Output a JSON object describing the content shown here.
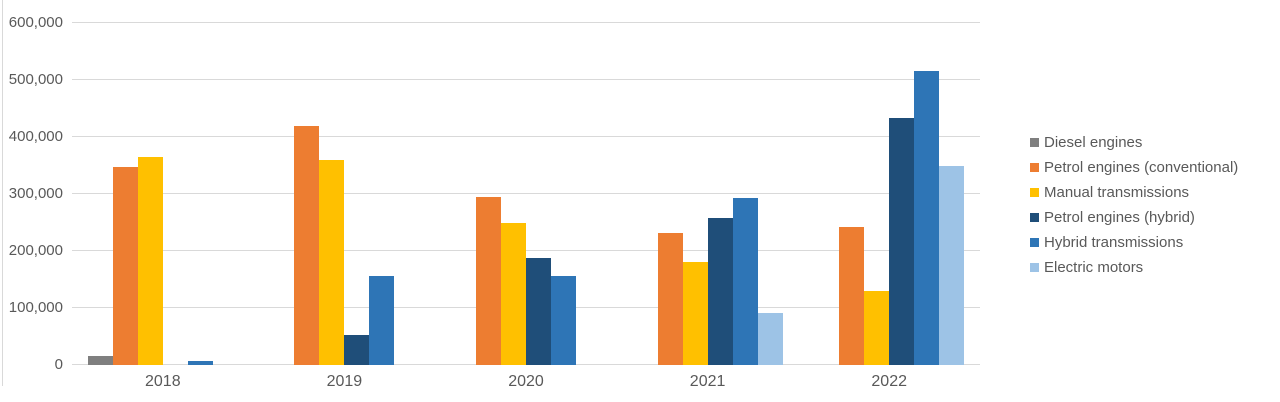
{
  "chart_data": {
    "type": "bar",
    "title": "",
    "categories": [
      "2018",
      "2019",
      "2020",
      "2021",
      "2022"
    ],
    "series": [
      {
        "name": "Diesel engines",
        "color": "#7F7F7F",
        "values": [
          15000,
          0,
          0,
          0,
          0
        ]
      },
      {
        "name": "Petrol engines (conventional)",
        "color": "#ED7D31",
        "values": [
          348000,
          420000,
          294000,
          231000,
          242000
        ]
      },
      {
        "name": "Manual transmissions",
        "color": "#FFC000",
        "values": [
          365000,
          360000,
          250000,
          181000,
          130000
        ]
      },
      {
        "name": "Petrol engines (hybrid)",
        "color": "#1F4E79",
        "values": [
          0,
          53000,
          188000,
          258000,
          433000
        ]
      },
      {
        "name": "Hybrid transmissions",
        "color": "#2E75B6",
        "values": [
          7000,
          157000,
          156000,
          293000,
          516000
        ]
      },
      {
        "name": "Electric motors",
        "color": "#9DC3E6",
        "values": [
          0,
          0,
          0,
          91000,
          350000
        ]
      }
    ],
    "ylim": [
      0,
      600000
    ],
    "ytick_interval": 100000,
    "yticks": [
      {
        "value": 0,
        "label": "0"
      },
      {
        "value": 100000,
        "label": "100,000"
      },
      {
        "value": 200000,
        "label": "200,000"
      },
      {
        "value": 300000,
        "label": "300,000"
      },
      {
        "value": 400000,
        "label": "400,000"
      },
      {
        "value": 500000,
        "label": "500,000"
      },
      {
        "value": 600000,
        "label": "600,000"
      }
    ],
    "grid": true,
    "legend_position": "right"
  },
  "styles": {
    "grid_color": "#D9D9D9",
    "axis_text_color": "#595959",
    "background": "#FFFFFF"
  }
}
